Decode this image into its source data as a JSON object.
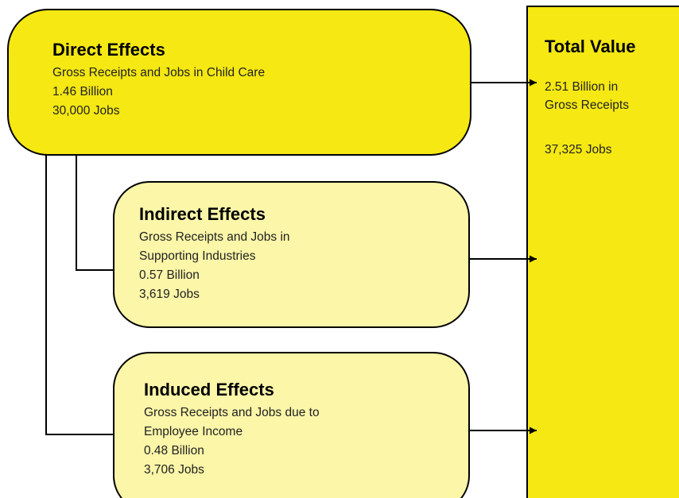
{
  "nodes": [
    {
      "title": "Direct Effects",
      "lines": [
        "Gross Receipts and Jobs in Child Care",
        "1.46 Billion",
        "30,000 Jobs"
      ]
    },
    {
      "title": "Indirect Effects",
      "lines": [
        "Gross Receipts and Jobs in",
        "Supporting Industries",
        "0.57 Billion",
        "3,619 Jobs"
      ]
    },
    {
      "title": "Induced Effects",
      "lines": [
        "Gross Receipts and Jobs due to",
        "Employee Income",
        "0.48 Billion",
        "3,706 Jobs"
      ]
    },
    {
      "title": "Total Value",
      "lines": [
        "2.51 Billion in",
        "Gross Receipts",
        "37,325 Jobs"
      ]
    }
  ]
}
